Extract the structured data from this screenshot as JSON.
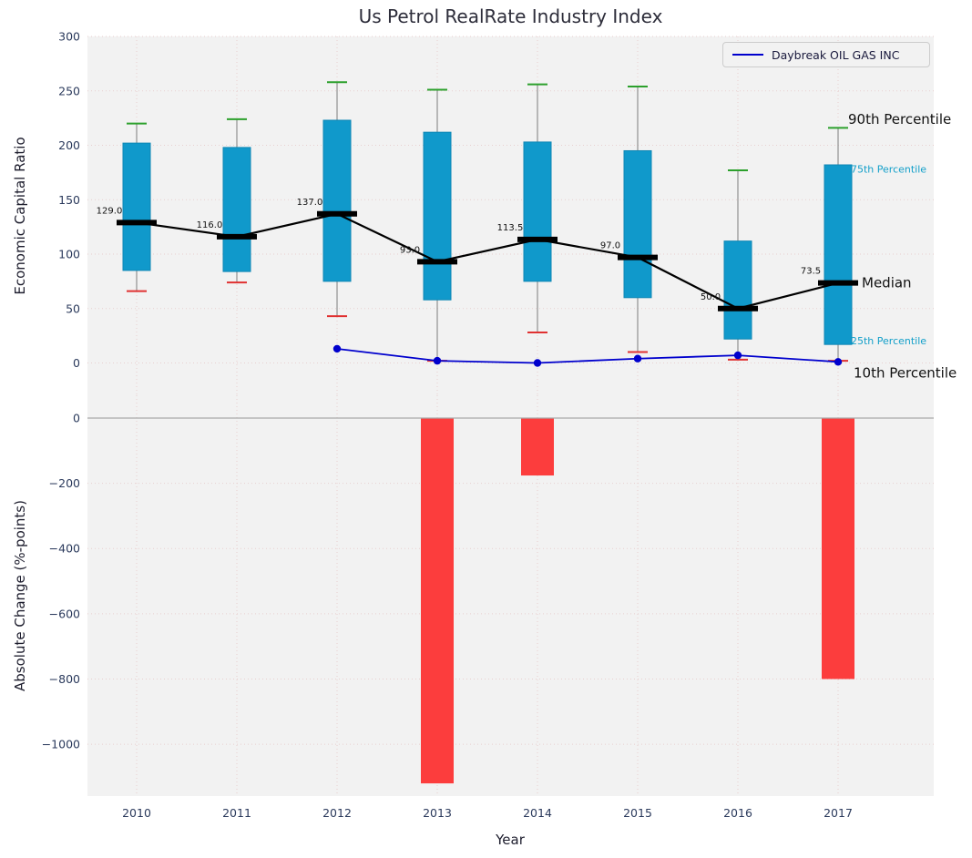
{
  "title": "Us Petrol RealRate Industry Index",
  "xlabel": "Year",
  "legend": {
    "label": "Daybreak OIL GAS INC"
  },
  "top_panel": {
    "ylabel": "Economic Capital Ratio"
  },
  "bottom_panel": {
    "ylabel": "Absolute Change (%-points)"
  },
  "colors": {
    "panel_bg": "#f2f2f2",
    "grid": "#e8cfcf",
    "tick_label": "#2b3a5c",
    "box_fill": "#1099cb",
    "box_edge": "#0e86b4",
    "whisker": "#909090",
    "cap_top_green": "#2ca02c",
    "cap_bottom_red": "#e03131",
    "median_black": "#000000",
    "company_blue": "#0000cd",
    "bar_red": "#fc3d3d",
    "zero_line": "#a8a8a8",
    "percentile_cyan": "#129fc9",
    "annotation_black": "#111111"
  },
  "chart_data": {
    "type": "combo: percentile boxplot + company line (top panel), negative bars (bottom panel)",
    "categories": [
      "2010",
      "2011",
      "2012",
      "2013",
      "2014",
      "2015",
      "2016",
      "2017"
    ],
    "top": {
      "ylim": [
        -30,
        300
      ],
      "yticks": [
        0,
        50,
        100,
        150,
        200,
        250,
        300
      ],
      "ytick_labels": [
        "0",
        "50",
        "100",
        "150",
        "200",
        "250",
        "300"
      ],
      "p90": [
        220,
        224,
        258,
        251,
        256,
        254,
        177,
        216
      ],
      "q3": [
        202,
        198,
        223,
        212,
        203,
        195,
        112,
        182
      ],
      "median": [
        129,
        116,
        137,
        93,
        113.5,
        97,
        50,
        73.5
      ],
      "q1": [
        85,
        84,
        75,
        58,
        75,
        60,
        22,
        17
      ],
      "p10": [
        66,
        74,
        43,
        2,
        28,
        10,
        3,
        2
      ],
      "median_labels": [
        "129.0",
        "116.0",
        "137.0",
        "93.0",
        "113.5",
        "97.0",
        "50.0",
        "73.5"
      ],
      "company_series": {
        "name": "Daybreak OIL GAS INC",
        "start_index": 2,
        "values": [
          13,
          2,
          0,
          4,
          7,
          1
        ]
      },
      "right_labels": [
        {
          "text": "90th Percentile",
          "value": 224,
          "color": "black",
          "size": 15,
          "dx": 11
        },
        {
          "text": "75th Percentile",
          "value": 178,
          "color": "cyan",
          "size": 11,
          "dx": 14
        },
        {
          "text": "Median",
          "value": 73.5,
          "color": "black",
          "size": 15,
          "dx": 26
        },
        {
          "text": "25th Percentile",
          "value": 20,
          "color": "cyan",
          "size": 11,
          "dx": 14
        },
        {
          "text": "10th Percentile",
          "value": -9,
          "color": "black",
          "size": 15,
          "dx": 17
        }
      ]
    },
    "bottom": {
      "ylim": [
        -1160,
        45
      ],
      "yticks": [
        0,
        -200,
        -400,
        -600,
        -800,
        -1000
      ],
      "ytick_labels": [
        "0",
        "−200",
        "−400",
        "−600",
        "−800",
        "−1000"
      ],
      "bars": [
        null,
        null,
        null,
        -1120,
        -176,
        null,
        null,
        -800
      ]
    }
  }
}
